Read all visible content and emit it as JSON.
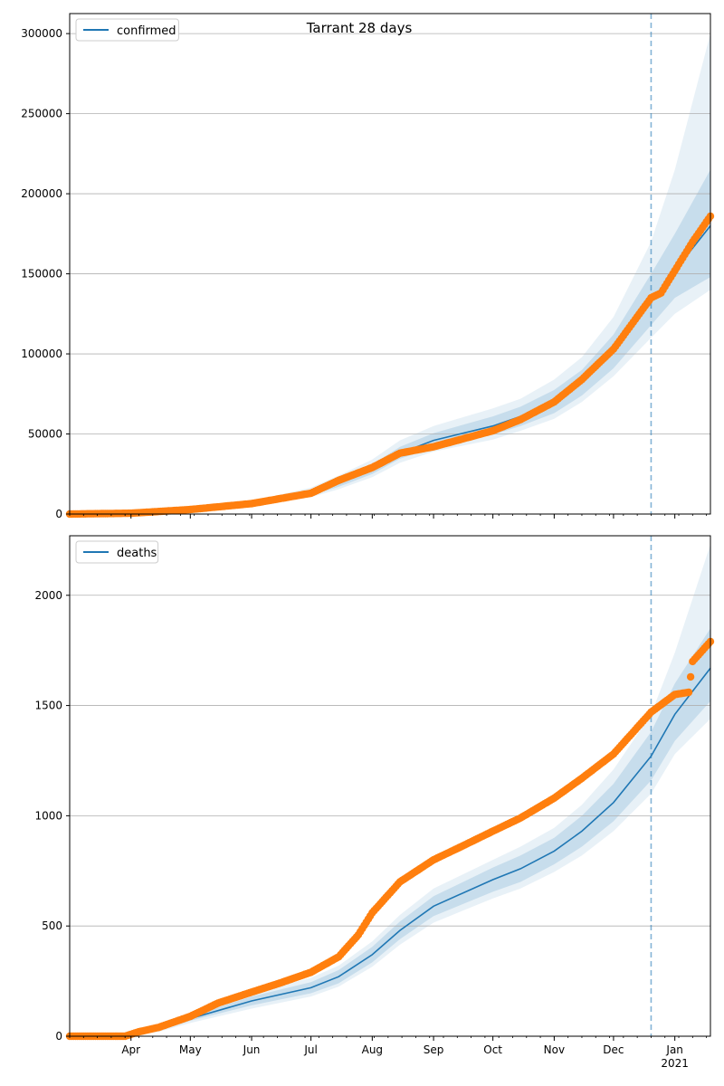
{
  "figure": {
    "title": "Tarrant 28 days"
  },
  "colors": {
    "model_line": "#1f77b4",
    "observed": "#ff7f0e",
    "band": "#1f77b4",
    "grid": "#b0b0b0",
    "vline": "#1f77b4"
  },
  "chart_data": [
    {
      "type": "line",
      "name": "confirmed-panel",
      "legend": [
        "confirmed"
      ],
      "legend_position": "upper-left",
      "grid": "y",
      "xlim": [
        "2020-03-01",
        "2021-01-19"
      ],
      "ylim": [
        0,
        312500
      ],
      "yticks": [
        0,
        50000,
        100000,
        150000,
        200000,
        250000,
        300000
      ],
      "ytick_labels": [
        "0",
        "50000",
        "100000",
        "150000",
        "200000",
        "250000",
        "300000"
      ],
      "xtick_labels": [],
      "forecast_start": "2020-12-20",
      "model": {
        "name": "confirmed",
        "x": [
          "2020-03-01",
          "2020-04-01",
          "2020-05-01",
          "2020-06-01",
          "2020-07-01",
          "2020-07-15",
          "2020-08-01",
          "2020-08-15",
          "2020-09-01",
          "2020-10-01",
          "2020-10-15",
          "2020-11-01",
          "2020-11-15",
          "2020-12-01",
          "2020-12-20",
          "2021-01-01",
          "2021-01-19"
        ],
        "y": [
          0,
          300,
          2500,
          6000,
          13000,
          19000,
          28000,
          38000,
          46000,
          55000,
          61000,
          70000,
          82000,
          101000,
          133000,
          152000,
          180000
        ],
        "bands": [
          {
            "lower": [
              0,
              200,
              2000,
              5000,
              11500,
              17000,
              25000,
              34500,
              41500,
              49500,
              55000,
              63000,
              74000,
              91000,
              118000,
              135000,
              148000
            ],
            "upper": [
              0,
              400,
              3000,
              7000,
              14500,
              21500,
              31000,
              42000,
              50500,
              61000,
              67000,
              77500,
              90000,
              112000,
              150000,
              175000,
              215000
            ]
          },
          {
            "lower": [
              0,
              150,
              1700,
              4500,
              10500,
              15500,
              23000,
              32000,
              39000,
              46500,
              52000,
              59500,
              70000,
              86000,
              110000,
              125000,
              140000
            ],
            "upper": [
              0,
              500,
              3500,
              8000,
              16500,
              24000,
              34000,
              46000,
              55000,
              66000,
              72000,
              84000,
              98000,
              123000,
              170000,
              215000,
              300000
            ]
          }
        ]
      },
      "observed": {
        "x": [
          "2020-03-01",
          "2020-04-01",
          "2020-05-01",
          "2020-06-01",
          "2020-07-01",
          "2020-07-15",
          "2020-08-01",
          "2020-08-15",
          "2020-09-01",
          "2020-10-01",
          "2020-10-15",
          "2020-11-01",
          "2020-11-15",
          "2020-12-01",
          "2020-12-20",
          "2020-12-25",
          "2021-01-01",
          "2021-01-10",
          "2021-01-19"
        ],
        "y": [
          0,
          500,
          2800,
          6500,
          13000,
          21000,
          29000,
          38000,
          42000,
          52000,
          59000,
          70000,
          84000,
          103000,
          135000,
          138000,
          152000,
          170000,
          186000
        ]
      }
    },
    {
      "type": "line",
      "name": "deaths-panel",
      "legend": [
        "deaths"
      ],
      "legend_position": "upper-left",
      "grid": "y",
      "xlim": [
        "2020-03-01",
        "2021-01-19"
      ],
      "ylim": [
        0,
        2270
      ],
      "yticks": [
        0,
        500,
        1000,
        1500,
        2000
      ],
      "ytick_labels": [
        "0",
        "500",
        "1000",
        "1500",
        "2000"
      ],
      "xtick_labels": [
        "Apr",
        "May",
        "Jun",
        "Jul",
        "Aug",
        "Sep",
        "Oct",
        "Nov",
        "Dec",
        "Jan",
        "2021"
      ],
      "forecast_start": "2020-12-20",
      "model": {
        "name": "deaths",
        "x": [
          "2020-03-01",
          "2020-03-29",
          "2020-04-15",
          "2020-05-01",
          "2020-06-01",
          "2020-07-01",
          "2020-07-15",
          "2020-08-01",
          "2020-08-15",
          "2020-09-01",
          "2020-10-01",
          "2020-10-15",
          "2020-11-01",
          "2020-11-15",
          "2020-12-01",
          "2020-12-20",
          "2021-01-01",
          "2021-01-19"
        ],
        "y": [
          0,
          0,
          30,
          80,
          160,
          220,
          270,
          370,
          480,
          590,
          710,
          760,
          840,
          930,
          1060,
          1270,
          1460,
          1670
        ],
        "bands": [
          {
            "lower": [
              0,
              0,
              25,
              70,
              140,
              195,
              240,
              335,
              440,
              545,
              655,
              700,
              780,
              860,
              975,
              1160,
              1340,
              1520
            ],
            "upper": [
              0,
              0,
              35,
              90,
              180,
              245,
              300,
              405,
              520,
              635,
              765,
              820,
              900,
              1000,
              1145,
              1380,
              1600,
              1850
            ]
          },
          {
            "lower": [
              0,
              0,
              20,
              60,
              125,
              180,
              225,
              315,
              415,
              515,
              625,
              670,
              745,
              820,
              930,
              1100,
              1280,
              1440
            ],
            "upper": [
              0,
              0,
              40,
              100,
              195,
              265,
              320,
              430,
              550,
              670,
              800,
              860,
              945,
              1050,
              1210,
              1460,
              1740,
              2230
            ]
          }
        ]
      },
      "observed": {
        "x": [
          "2020-03-01",
          "2020-03-29",
          "2020-04-05",
          "2020-04-15",
          "2020-05-01",
          "2020-05-15",
          "2020-06-01",
          "2020-06-15",
          "2020-07-01",
          "2020-07-15",
          "2020-07-25",
          "2020-08-01",
          "2020-08-15",
          "2020-09-01",
          "2020-09-15",
          "2020-10-01",
          "2020-10-15",
          "2020-11-01",
          "2020-11-15",
          "2020-12-01",
          "2020-12-20",
          "2021-01-01",
          "2021-01-08",
          "2021-01-10",
          "2021-01-19"
        ],
        "y": [
          0,
          0,
          20,
          40,
          90,
          150,
          200,
          240,
          290,
          360,
          460,
          560,
          700,
          800,
          860,
          930,
          990,
          1080,
          1170,
          1280,
          1470,
          1550,
          1560,
          1700,
          1790
        ]
      }
    }
  ]
}
